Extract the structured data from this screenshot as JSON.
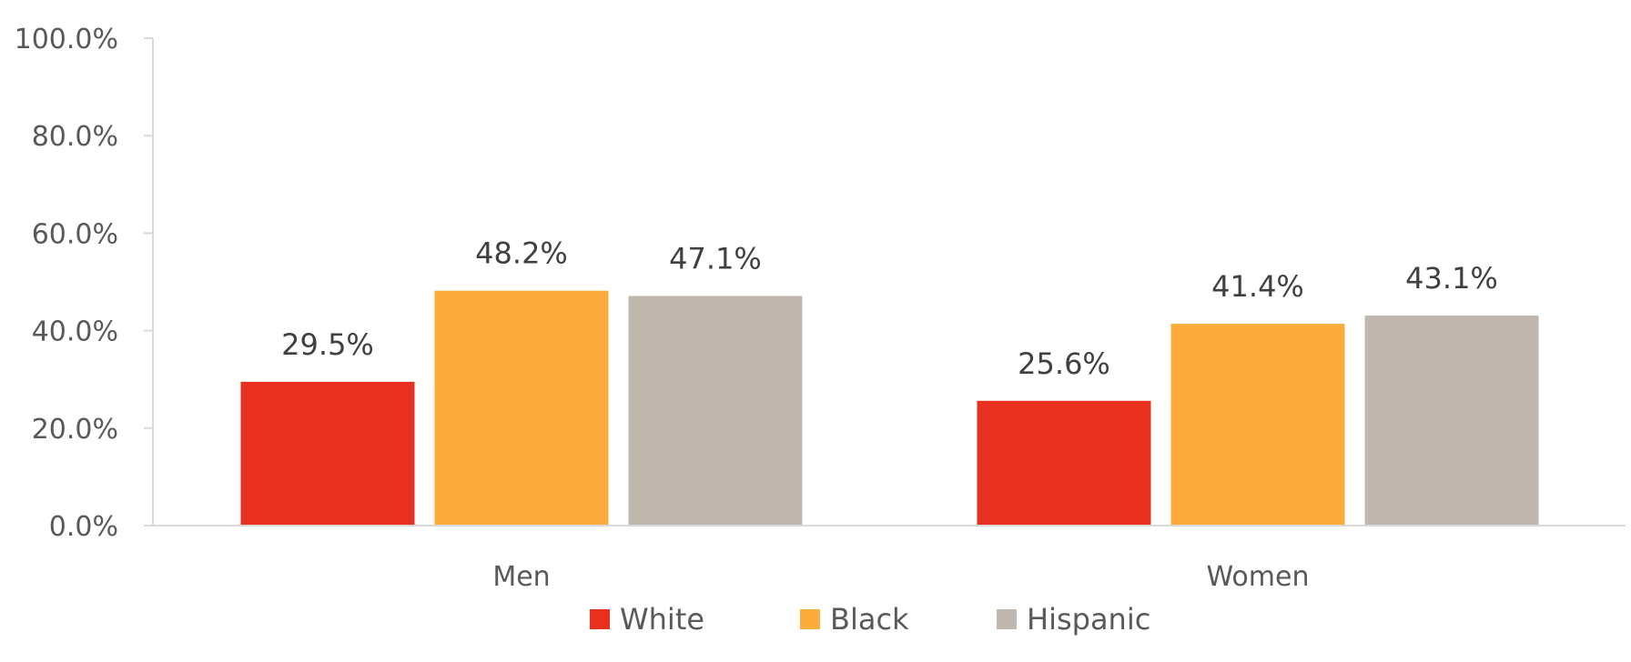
{
  "chart_data": {
    "type": "bar",
    "title": "",
    "xlabel": "",
    "ylabel": "",
    "categories": [
      "Men",
      "Women"
    ],
    "series": [
      {
        "name": "White",
        "values": [
          29.5,
          25.6
        ],
        "color": "#E8301F",
        "labels": [
          "29.5%",
          "25.6%"
        ]
      },
      {
        "name": "Black",
        "values": [
          48.2,
          41.4
        ],
        "color": "#FBAC3A",
        "labels": [
          "48.2%",
          "41.4%"
        ]
      },
      {
        "name": "Hispanic",
        "values": [
          47.1,
          43.1
        ],
        "color": "#C0B8AE",
        "labels": [
          "47.1%",
          "43.1%"
        ]
      }
    ],
    "ylim": [
      0,
      100
    ],
    "yticks": [
      0,
      20,
      40,
      60,
      80,
      100
    ],
    "ytick_labels": [
      "0.0%",
      "20.0%",
      "40.0%",
      "60.0%",
      "80.0%",
      "100.0%"
    ],
    "grid": false,
    "legend_position": "bottom"
  }
}
